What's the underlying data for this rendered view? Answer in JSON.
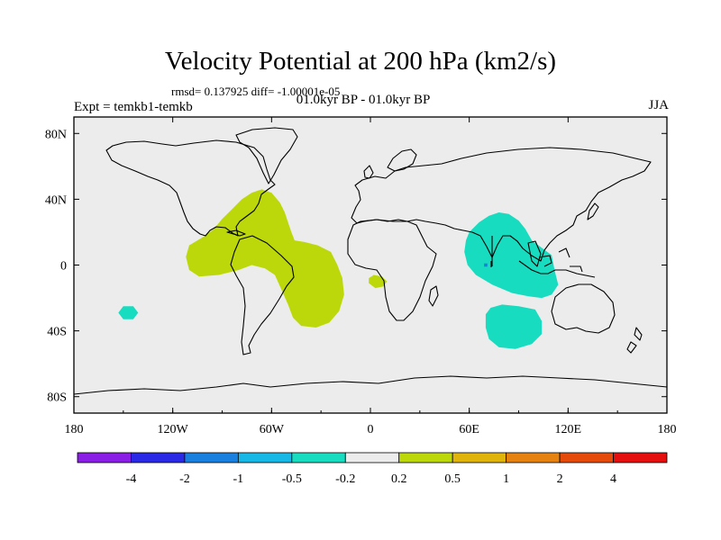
{
  "header": {
    "title": "Velocity Potential at 200 hPa (km2/s)",
    "stats": "rmsd= 0.137925 diff= -1.00001e-05",
    "expt": "Expt = temkb1-temkb",
    "period": "01.0kyr BP - 01.0kyr BP",
    "season": "JJA"
  },
  "chart_data": {
    "type": "heatmap",
    "title": "Velocity Potential at 200 hPa (km2/s)",
    "projection": "cylindrical-equidistant",
    "xlim": [
      -180,
      180
    ],
    "ylim": [
      -90,
      90
    ],
    "x_ticks": [
      {
        "value": -180,
        "label": "180"
      },
      {
        "value": -120,
        "label": "120W"
      },
      {
        "value": -60,
        "label": "60W"
      },
      {
        "value": 0,
        "label": "0"
      },
      {
        "value": 60,
        "label": "60E"
      },
      {
        "value": 120,
        "label": "120E"
      },
      {
        "value": 180,
        "label": "180"
      }
    ],
    "y_ticks": [
      {
        "value": 80,
        "label": "80N"
      },
      {
        "value": 40,
        "label": "40N"
      },
      {
        "value": 0,
        "label": "0"
      },
      {
        "value": -40,
        "label": "40S"
      },
      {
        "value": -80,
        "label": "80S"
      }
    ],
    "colorbar": {
      "labels": [
        "-4",
        "-2",
        "-1",
        "-0.5",
        "-0.2",
        "0.2",
        "0.5",
        "1",
        "2",
        "4"
      ],
      "colors": [
        "#8a1ee6",
        "#2a2ae6",
        "#1a80e0",
        "#17b8e6",
        "#18dcc0",
        "#ececec",
        "#bcd80a",
        "#e0b40a",
        "#e6820f",
        "#e64a0a",
        "#e60f0f"
      ]
    },
    "regions": [
      {
        "name": "positive-anomaly-americas-atlantic",
        "level": "0.2 to 0.5",
        "color": "#bcd80a",
        "outline": [
          [
            -90,
            28
          ],
          [
            -84,
            34
          ],
          [
            -78,
            40
          ],
          [
            -72,
            44
          ],
          [
            -66,
            46
          ],
          [
            -60,
            44
          ],
          [
            -55,
            38
          ],
          [
            -52,
            32
          ],
          [
            -50,
            26
          ],
          [
            -48,
            20
          ],
          [
            -46,
            15
          ],
          [
            -40,
            14
          ],
          [
            -32,
            12
          ],
          [
            -24,
            8
          ],
          [
            -20,
            0
          ],
          [
            -17,
            -8
          ],
          [
            -16,
            -18
          ],
          [
            -19,
            -28
          ],
          [
            -25,
            -35
          ],
          [
            -33,
            -38
          ],
          [
            -42,
            -37
          ],
          [
            -47,
            -32
          ],
          [
            -50,
            -24
          ],
          [
            -54,
            -15
          ],
          [
            -58,
            -6
          ],
          [
            -64,
            -2
          ],
          [
            -72,
            0
          ],
          [
            -80,
            -3
          ],
          [
            -92,
            -6
          ],
          [
            -104,
            -7
          ],
          [
            -110,
            -3
          ],
          [
            -112,
            5
          ],
          [
            -110,
            12
          ],
          [
            -105,
            15
          ],
          [
            -100,
            18
          ],
          [
            -95,
            22
          ]
        ]
      },
      {
        "name": "positive-anomaly-gulf-of-guinea",
        "level": "0.2 to 0.5",
        "color": "#bcd80a",
        "outline": [
          [
            2,
            -6
          ],
          [
            7,
            -7
          ],
          [
            10,
            -10
          ],
          [
            8,
            -13
          ],
          [
            3,
            -14
          ],
          [
            -1,
            -11
          ],
          [
            -1,
            -8
          ]
        ]
      },
      {
        "name": "negative-anomaly-indian-ocean",
        "level": "-0.5 to -0.2",
        "color": "#18dcc0",
        "outline": [
          [
            60,
            20
          ],
          [
            66,
            26
          ],
          [
            72,
            30
          ],
          [
            78,
            32
          ],
          [
            84,
            31
          ],
          [
            90,
            27
          ],
          [
            94,
            22
          ],
          [
            98,
            15
          ],
          [
            110,
            6
          ],
          [
            112,
            -4
          ],
          [
            114,
            -12
          ],
          [
            110,
            -18
          ],
          [
            104,
            -20
          ],
          [
            96,
            -19
          ],
          [
            86,
            -17
          ],
          [
            74,
            -12
          ],
          [
            64,
            -6
          ],
          [
            59,
            0
          ],
          [
            57,
            8
          ],
          [
            58,
            15
          ]
        ]
      },
      {
        "name": "negative-anomaly-southern-indian-ocean",
        "level": "-0.5 to -0.2",
        "color": "#18dcc0",
        "outline": [
          [
            73,
            -26
          ],
          [
            80,
            -24
          ],
          [
            90,
            -25
          ],
          [
            100,
            -27
          ],
          [
            104,
            -34
          ],
          [
            104,
            -42
          ],
          [
            98,
            -48
          ],
          [
            88,
            -51
          ],
          [
            78,
            -50
          ],
          [
            72,
            -45
          ],
          [
            70,
            -38
          ],
          [
            70,
            -30
          ]
        ]
      },
      {
        "name": "negative-anomaly-south-pacific",
        "level": "-0.5 to -0.2",
        "color": "#18dcc0",
        "outline": [
          [
            -150,
            -25
          ],
          [
            -144,
            -25
          ],
          [
            -141,
            -29
          ],
          [
            -144,
            -33
          ],
          [
            -150,
            -33
          ],
          [
            -153,
            -29
          ]
        ]
      },
      {
        "name": "strong-negative-anomaly-indian-ocean",
        "level": "-2 to -1",
        "color": "#1a80e0",
        "outline": [
          [
            69,
            -1
          ],
          [
            71,
            -1
          ],
          [
            71,
            1
          ],
          [
            69,
            1
          ]
        ]
      }
    ]
  }
}
